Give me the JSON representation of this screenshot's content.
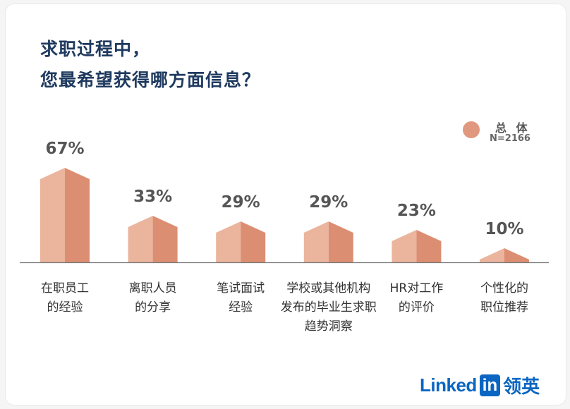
{
  "chart_data": {
    "type": "bar",
    "title": [
      "求职过程中，",
      "您最希望获得哪方面信息？"
    ],
    "categories": [
      [
        "在职员工",
        "的经验"
      ],
      [
        "离职人员",
        "的分享"
      ],
      [
        "笔试面试",
        "经验"
      ],
      [
        "学校或其他机构",
        "发布的毕业生求职",
        "趋势洞察"
      ],
      [
        "HR对工作",
        "的评价"
      ],
      [
        "个性化的",
        "职位推荐"
      ]
    ],
    "series": [
      {
        "name": "总 体",
        "values": [
          67,
          33,
          29,
          29,
          23,
          10
        ],
        "color": "#e0987e"
      }
    ],
    "value_labels": [
      "67%",
      "33%",
      "29%",
      "29%",
      "23%",
      "10%"
    ],
    "ylim": [
      0,
      100
    ],
    "legend": {
      "position": "top-right",
      "name": "总 体",
      "note": "N=2166"
    },
    "grid": false,
    "colors": {
      "front": "#ebb49c",
      "side": "#dc8e72",
      "title": "#1f3a5f",
      "label": "#333333",
      "value": "#555555"
    }
  },
  "brand": {
    "name": "Linked",
    "box": "in",
    "cn": "领英"
  }
}
